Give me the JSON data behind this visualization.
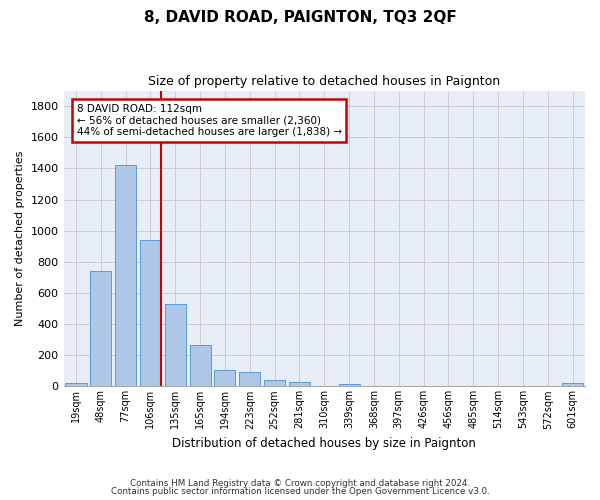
{
  "title": "8, DAVID ROAD, PAIGNTON, TQ3 2QF",
  "subtitle": "Size of property relative to detached houses in Paignton",
  "xlabel": "Distribution of detached houses by size in Paignton",
  "ylabel": "Number of detached properties",
  "bar_labels": [
    "19sqm",
    "48sqm",
    "77sqm",
    "106sqm",
    "135sqm",
    "165sqm",
    "194sqm",
    "223sqm",
    "252sqm",
    "281sqm",
    "310sqm",
    "339sqm",
    "368sqm",
    "397sqm",
    "426sqm",
    "456sqm",
    "485sqm",
    "514sqm",
    "543sqm",
    "572sqm",
    "601sqm"
  ],
  "bar_values": [
    20,
    740,
    1420,
    940,
    530,
    265,
    105,
    95,
    40,
    28,
    0,
    18,
    0,
    0,
    0,
    0,
    0,
    0,
    0,
    0,
    20
  ],
  "bar_color": "#aec6e8",
  "bar_edge_color": "#5b9bd5",
  "ylim": [
    0,
    1900
  ],
  "yticks": [
    0,
    200,
    400,
    600,
    800,
    1000,
    1200,
    1400,
    1600,
    1800
  ],
  "property_label": "8 DAVID ROAD: 112sqm",
  "pct_smaller": 56,
  "n_smaller": 2360,
  "pct_larger": 44,
  "n_larger": 1838,
  "line_color": "#cc0000",
  "box_edge_color": "#cc0000",
  "footnote_line1": "Contains HM Land Registry data © Crown copyright and database right 2024.",
  "footnote_line2": "Contains public sector information licensed under the Open Government Licence v3.0.",
  "grid_color": "#cccccc",
  "bg_color": "#e8eef8"
}
